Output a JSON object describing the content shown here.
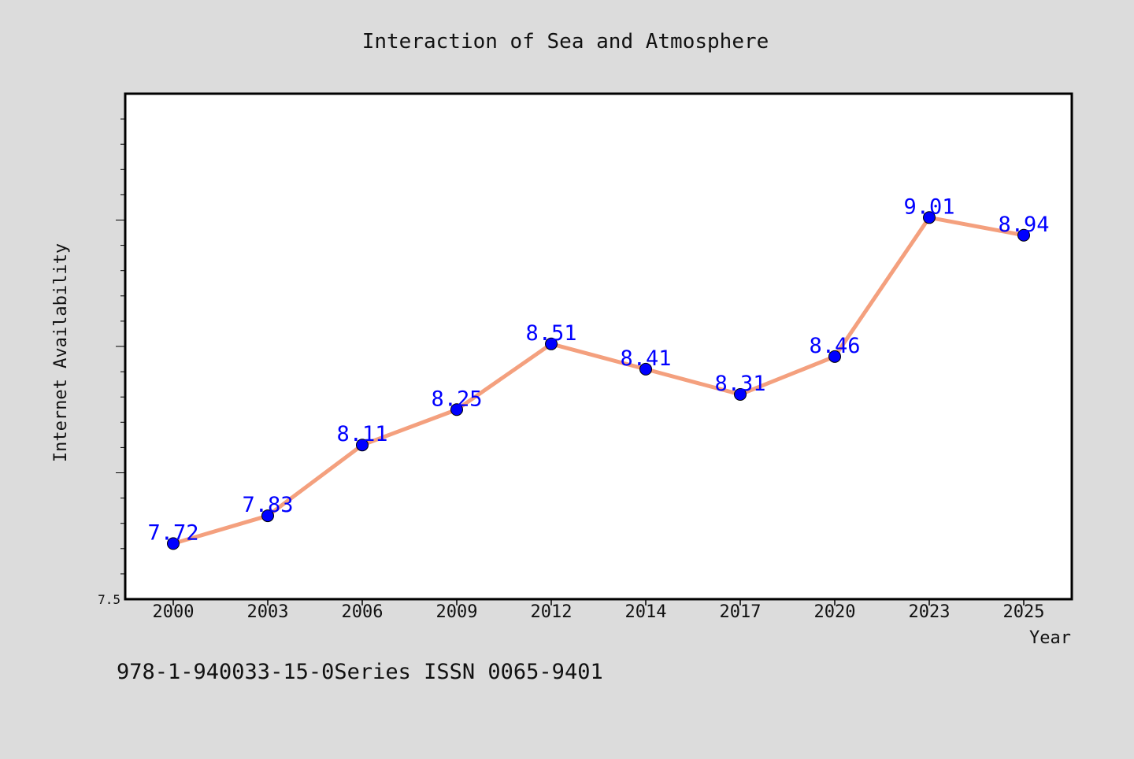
{
  "footer_text": "978-1-940033-15-0Series ISSN 0065-9401",
  "colors": {
    "background": "#dcdcdc",
    "plot_background": "#ffffff",
    "line": "#f4a07e",
    "marker": "#0000ff",
    "label": "#0000ff"
  },
  "chart_data": {
    "type": "line",
    "title": "Interaction of Sea and Atmosphere",
    "xlabel": "Year",
    "ylabel": "Internet Availability",
    "categories": [
      "2000",
      "2003",
      "2006",
      "2009",
      "2012",
      "2014",
      "2017",
      "2020",
      "2023",
      "2025"
    ],
    "series": [
      {
        "values": [
          7.72,
          7.83,
          8.11,
          8.25,
          8.51,
          8.41,
          8.31,
          8.46,
          9.01,
          8.94
        ]
      }
    ],
    "ylim": [
      7.5,
      9.5
    ],
    "yticks_labeled": [
      "7.5"
    ],
    "ytick_minor_step": 0.1,
    "grid": false,
    "legend": "none"
  }
}
